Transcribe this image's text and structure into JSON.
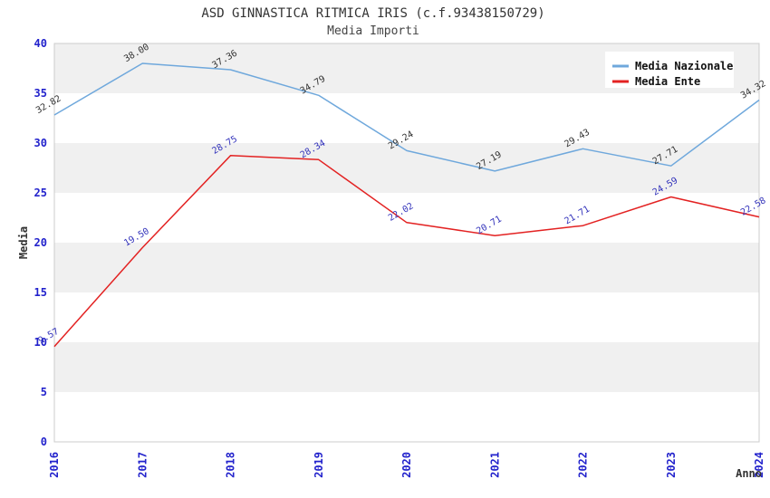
{
  "title": "ASD GINNASTICA RITMICA IRIS (c.f.93438150729)",
  "subtitle": "Media Importi",
  "chart_data": {
    "type": "line",
    "x": [
      2016,
      2017,
      2018,
      2019,
      2020,
      2021,
      2022,
      2023,
      2024
    ],
    "series": [
      {
        "name": "Media Nazionale",
        "color": "#6fa8dc",
        "label_color": "#333333",
        "values": [
          32.82,
          38.0,
          37.36,
          34.79,
          29.24,
          27.19,
          29.43,
          27.71,
          34.32
        ]
      },
      {
        "name": "Media Ente",
        "color": "#e32222",
        "label_color": "#3333bb",
        "values": [
          9.57,
          19.5,
          28.75,
          28.34,
          22.02,
          20.71,
          21.71,
          24.59,
          22.58
        ]
      }
    ],
    "xlabel": "Anno",
    "ylabel": "Media",
    "ylim": [
      0,
      40
    ],
    "ytick_step": 5,
    "yticks": [
      0,
      5,
      10,
      15,
      20,
      25,
      30,
      35,
      40
    ],
    "grid_bands": true,
    "legend_position": "top-right",
    "value_label_decimals": 2,
    "colors": {
      "tick_label": "#2222cc",
      "band_gray": "#f0f0f0",
      "band_white": "#ffffff",
      "plot_border": "#cccccc",
      "legend_bg": "#ffffff",
      "title": "#333333"
    }
  }
}
